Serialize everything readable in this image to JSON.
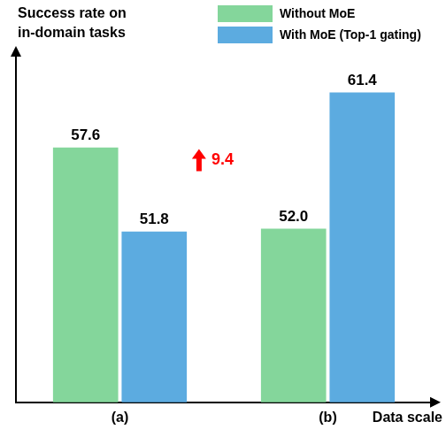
{
  "chart_data": {
    "type": "bar",
    "y_label": "Success rate on in-domain tasks",
    "x_label": "Data scale",
    "categories": [
      "(a)",
      "(b)"
    ],
    "series": [
      {
        "name": "Without MoE",
        "color": "#84d69b",
        "values": [
          57.6,
          52.0
        ],
        "value_labels": [
          "57.6",
          "52.0"
        ]
      },
      {
        "name": "With MoE (Top-1 gating)",
        "color": "#5cabe0",
        "values": [
          51.8,
          61.4
        ],
        "value_labels": [
          "51.8",
          "61.4"
        ]
      }
    ],
    "ylim": [
      40,
      64
    ],
    "grid": false,
    "legend": "upper right",
    "data_labels": true,
    "tick_labels": "x",
    "annotations": [
      {
        "text": "9.4",
        "color": "#ff0000",
        "category": "(b)"
      }
    ]
  }
}
